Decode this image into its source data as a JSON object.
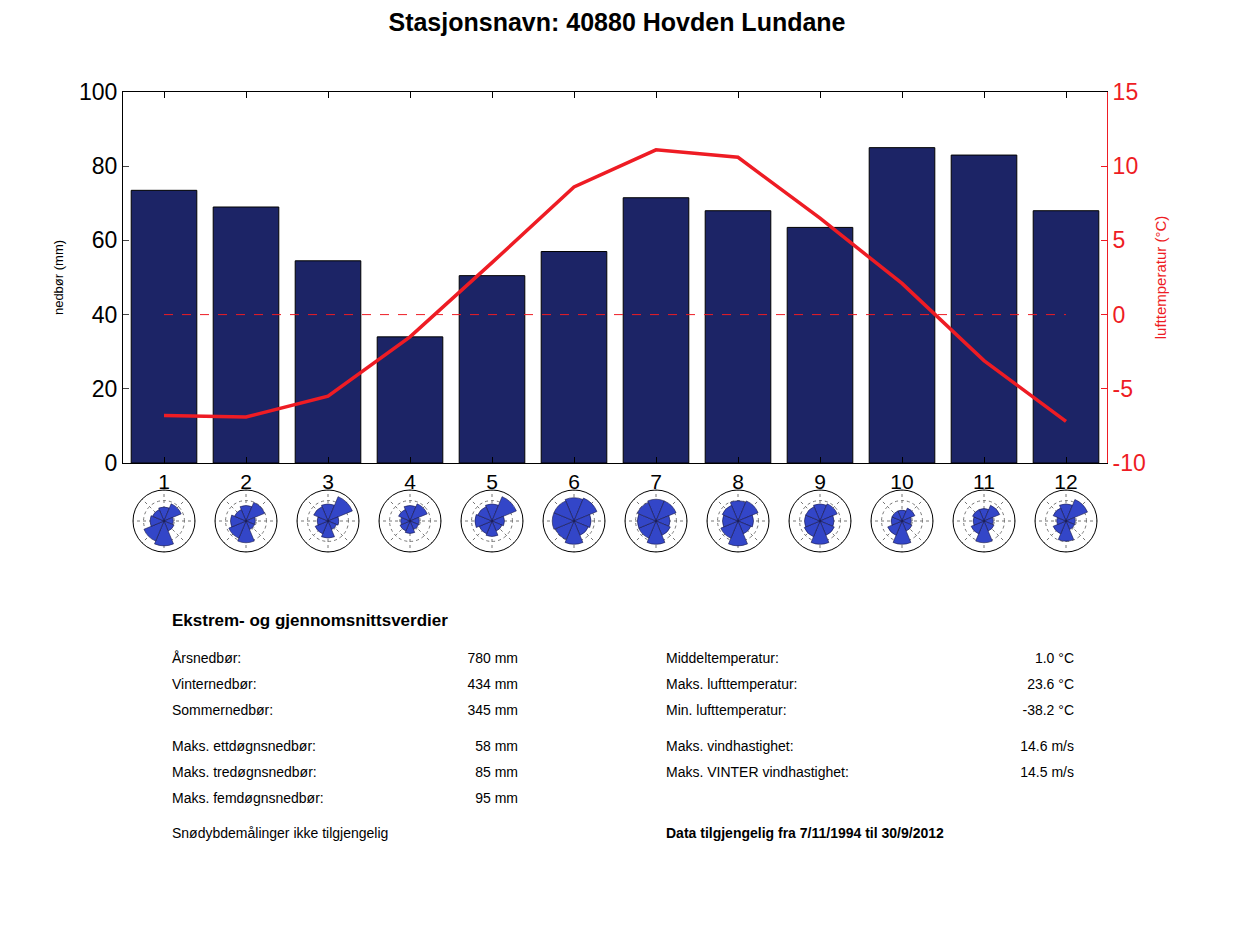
{
  "chart_data": {
    "type": "bar",
    "title": "Stasjonsnavn: 40880 Hovden Lundane",
    "y_label": "nedbør (mm)",
    "y2_label": "lufttemperatur (°C)",
    "categories": [
      "1",
      "2",
      "3",
      "4",
      "5",
      "6",
      "7",
      "8",
      "9",
      "10",
      "11",
      "12"
    ],
    "series": [
      {
        "type": "bar",
        "color": "#1c2466",
        "values": [
          73.5,
          69,
          54.5,
          34,
          50.5,
          57,
          71.5,
          68,
          63.5,
          85,
          83,
          68
        ]
      },
      {
        "type": "line",
        "axis": "y2",
        "color": "#ee1c24",
        "line_style": "solid",
        "values": [
          -6.8,
          -6.9,
          -5.5,
          -1.5,
          3.5,
          8.6,
          11.1,
          10.6,
          6.5,
          2.1,
          -3.1,
          -7.2
        ]
      }
    ],
    "zero_line": {
      "value": 0,
      "axis": "y2",
      "color": "#ee1c24",
      "line_style": "dashed"
    },
    "ylim": [
      0,
      100
    ],
    "yticks": [
      0,
      20,
      40,
      60,
      80,
      100
    ],
    "y2lim": [
      -10,
      15
    ],
    "y2ticks": [
      -10,
      -5,
      0,
      5,
      10,
      15
    ],
    "grid": false,
    "wind_roses": {
      "color": "#3346c8",
      "directions": [
        0,
        45,
        90,
        135,
        180,
        225,
        270,
        315
      ],
      "rlim": [
        0,
        1
      ],
      "rticks": [
        0.33,
        0.66,
        1
      ],
      "values": [
        [
          0.45,
          0.6,
          0.3,
          0.35,
          0.8,
          0.7,
          0.45,
          0.4
        ],
        [
          0.5,
          0.65,
          0.3,
          0.3,
          0.7,
          0.6,
          0.5,
          0.4
        ],
        [
          0.55,
          0.85,
          0.35,
          0.3,
          0.55,
          0.45,
          0.35,
          0.5
        ],
        [
          0.5,
          0.6,
          0.3,
          0.3,
          0.4,
          0.35,
          0.3,
          0.4
        ],
        [
          0.55,
          0.85,
          0.4,
          0.35,
          0.5,
          0.45,
          0.55,
          0.5
        ],
        [
          0.75,
          0.8,
          0.55,
          0.5,
          0.75,
          0.65,
          0.7,
          0.7
        ],
        [
          0.7,
          0.7,
          0.45,
          0.5,
          0.75,
          0.6,
          0.6,
          0.65
        ],
        [
          0.65,
          0.7,
          0.5,
          0.45,
          0.8,
          0.6,
          0.5,
          0.55
        ],
        [
          0.55,
          0.6,
          0.45,
          0.5,
          0.75,
          0.55,
          0.5,
          0.5
        ],
        [
          0.35,
          0.45,
          0.3,
          0.35,
          0.75,
          0.5,
          0.35,
          0.35
        ],
        [
          0.4,
          0.55,
          0.3,
          0.35,
          0.7,
          0.45,
          0.35,
          0.4
        ],
        [
          0.55,
          0.75,
          0.3,
          0.3,
          0.65,
          0.45,
          0.3,
          0.45
        ]
      ]
    }
  },
  "statistics": {
    "title": "Ekstrem- og gjennomsnittsverdier",
    "left": [
      [
        "Årsnedbør:",
        "780 mm"
      ],
      [
        "Vinternedbør:",
        "434 mm"
      ],
      [
        "Sommernedbør:",
        "345 mm"
      ],
      [
        "Maks. ettdøgnsnedbør:",
        "58 mm"
      ],
      [
        "Maks. tredøgnsnedbør:",
        "85 mm"
      ],
      [
        "Maks. femdøgnsnedbør:",
        "95 mm"
      ]
    ],
    "right": [
      [
        "Middeltemperatur:",
        "1.0 °C"
      ],
      [
        "Maks. lufttemperatur:",
        "23.6 °C"
      ],
      [
        "Min. lufttemperatur:",
        "-38.2 °C"
      ],
      [
        "Maks. vindhastighet:",
        "14.6 m/s"
      ],
      [
        "Maks. VINTER vindhastighet:",
        "14.5 m/s"
      ]
    ],
    "note_left": "Snødybdemålinger ikke tilgjengelig",
    "note_right": "Data tilgjengelig fra 7/11/1994 til 30/9/2012"
  }
}
